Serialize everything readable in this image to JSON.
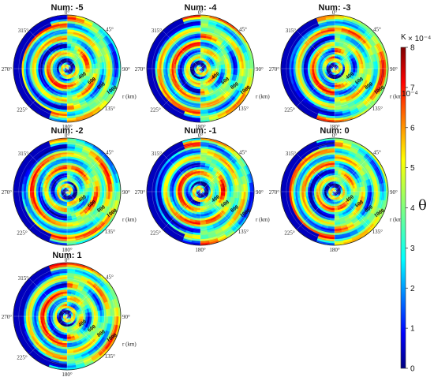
{
  "chart_data": {
    "type": "heatmap",
    "description_kind": "polar-heatmap-grid",
    "panels": [
      {
        "title": "Num: -5"
      },
      {
        "title": "Num: -4"
      },
      {
        "title": "Num: -3"
      },
      {
        "title": "Num: -2"
      },
      {
        "title": "Num: -1"
      },
      {
        "title": "Num: 0"
      },
      {
        "title": "Num: 1"
      }
    ],
    "angle_labels": [
      "0°",
      "45°",
      "90°",
      "135°",
      "180°",
      "225°",
      "270°",
      "315°"
    ],
    "r_ticks": [
      "400",
      "600",
      "800",
      "1000"
    ],
    "r_unit": "r (km)",
    "colorbar": {
      "ticks": [
        0,
        1,
        2,
        3,
        4,
        5,
        6,
        7,
        8
      ],
      "unit_label": "K",
      "scale_label": "× 10⁻⁴",
      "scale_label_2": "10⁻⁴",
      "symbol": "θ",
      "colormap": "jet"
    }
  }
}
